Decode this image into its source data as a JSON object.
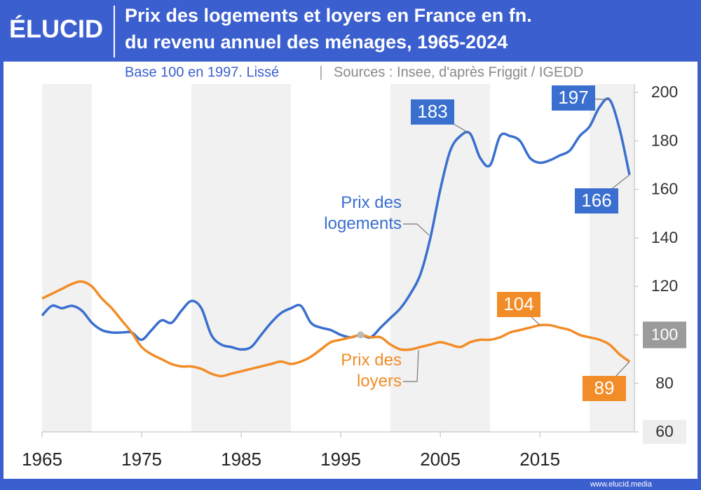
{
  "brand": "ÉLUCID",
  "footer": "www.elucid.media",
  "chart_data": {
    "type": "line",
    "title": [
      "Prix des logements et loyers en France en fn.",
      "du revenu annuel des ménages, 1965-2024"
    ],
    "subtitle": "Base 100 en 1997. Lissé",
    "source": "Sources : Insee, d'après Friggit / IGEDD",
    "x": [
      1965,
      1966,
      1967,
      1968,
      1969,
      1970,
      1971,
      1972,
      1973,
      1974,
      1975,
      1976,
      1977,
      1978,
      1979,
      1980,
      1981,
      1982,
      1983,
      1984,
      1985,
      1986,
      1987,
      1988,
      1989,
      1990,
      1991,
      1992,
      1993,
      1994,
      1995,
      1996,
      1997,
      1998,
      1999,
      2000,
      2001,
      2002,
      2003,
      2004,
      2005,
      2006,
      2007,
      2008,
      2009,
      2010,
      2011,
      2012,
      2013,
      2014,
      2015,
      2016,
      2017,
      2018,
      2019,
      2020,
      2021,
      2022,
      2023,
      2024
    ],
    "series": [
      {
        "name": "Prix des logements",
        "color": "#3a6fcf",
        "values": [
          108,
          112,
          111,
          112,
          110,
          105,
          102,
          101,
          101,
          101,
          98,
          102,
          106,
          105,
          110,
          114,
          111,
          100,
          96,
          95,
          94,
          95,
          100,
          105,
          109,
          111,
          112,
          105,
          103,
          102,
          100,
          99,
          100,
          99,
          103,
          107,
          111,
          117,
          125,
          140,
          160,
          176,
          182,
          183,
          173,
          170,
          182,
          182,
          180,
          173,
          171,
          172,
          174,
          176,
          182,
          186,
          194,
          197,
          185,
          166
        ],
        "callouts": [
          {
            "x": 2008,
            "value": 183
          },
          {
            "x": 2022,
            "value": 197
          },
          {
            "x": 2024,
            "value": 166
          }
        ]
      },
      {
        "name": "Prix des loyers",
        "color": "#f28c28",
        "values": [
          115,
          117,
          119,
          121,
          122,
          120,
          115,
          111,
          106,
          101,
          95,
          92,
          90,
          88,
          87,
          87,
          86,
          84,
          83,
          84,
          85,
          86,
          87,
          88,
          89,
          88,
          89,
          91,
          94,
          97,
          98,
          99,
          100,
          99,
          99,
          96,
          94,
          94,
          95,
          96,
          97,
          96,
          95,
          97,
          98,
          98,
          99,
          101,
          102,
          103,
          104,
          104,
          103,
          102,
          100,
          99,
          98,
          96,
          92,
          89
        ],
        "callouts": [
          {
            "x": 2015,
            "value": 104
          },
          {
            "x": 2024,
            "value": 89
          }
        ]
      }
    ],
    "base_point": {
      "x": 1997,
      "y": 100
    },
    "xlim": [
      1965,
      2024
    ],
    "xticks": [
      1965,
      1975,
      1985,
      1995,
      2005,
      2015
    ],
    "ylim": [
      60,
      200
    ],
    "yticks": [
      60,
      80,
      100,
      120,
      140,
      160,
      180,
      200
    ],
    "y_axis_side": "right"
  }
}
